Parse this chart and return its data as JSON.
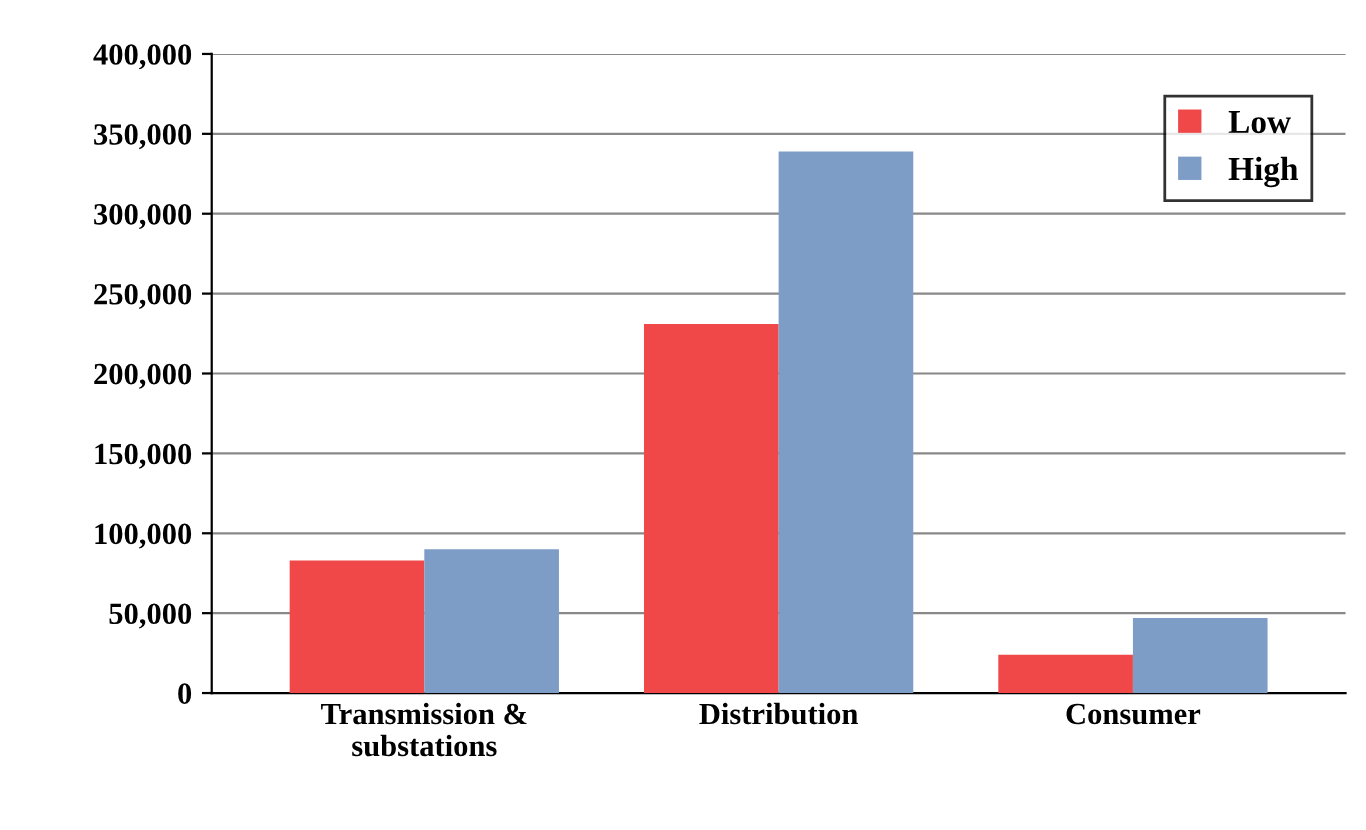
{
  "chart_data": {
    "type": "bar",
    "categories": [
      "Transmission &\nsubstations",
      "Distribution",
      "Consumer"
    ],
    "series": [
      {
        "name": "Low",
        "color": "#f04848",
        "values": [
          83000,
          231000,
          24000
        ]
      },
      {
        "name": "High",
        "color": "#7d9cc6",
        "values": [
          90000,
          339000,
          47000
        ]
      }
    ],
    "ylim": [
      0,
      400000
    ],
    "yticks": [
      {
        "value": 0,
        "label": "0"
      },
      {
        "value": 50000,
        "label": "50,000"
      },
      {
        "value": 100000,
        "label": "100,000"
      },
      {
        "value": 150000,
        "label": "150,000"
      },
      {
        "value": 200000,
        "label": "200,000"
      },
      {
        "value": 250000,
        "label": "250,000"
      },
      {
        "value": 300000,
        "label": "300,000"
      },
      {
        "value": 350000,
        "label": "350,000"
      },
      {
        "value": 400000,
        "label": "400,000"
      }
    ],
    "grid": "y",
    "legend": "top right"
  }
}
